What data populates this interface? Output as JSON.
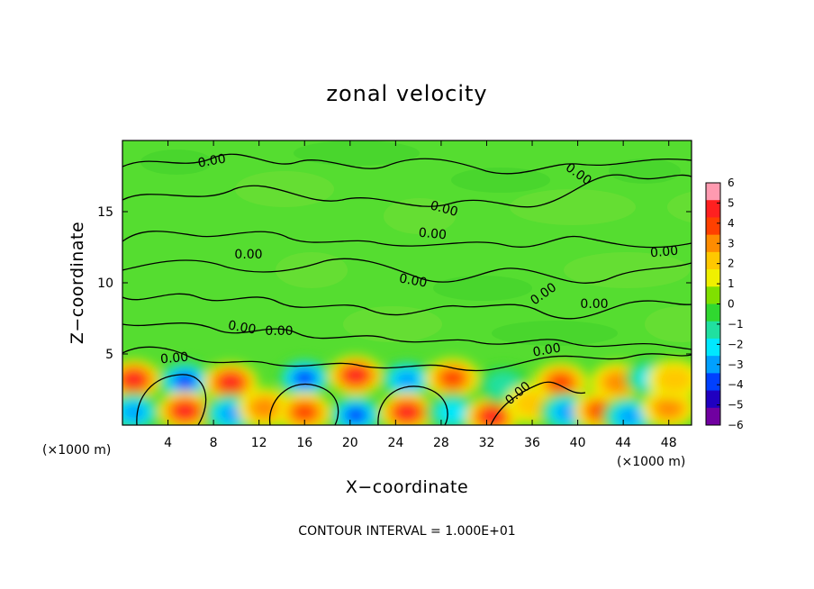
{
  "chart_data": {
    "type": "heatmap",
    "title": "zonal velocity",
    "xlabel": "X−coordinate",
    "ylabel": "Z−coordinate",
    "x_units": "(×1000 m)",
    "x_units_right": "(×1000 m)",
    "footer": "CONTOUR INTERVAL = 1.000E+01",
    "xlim": [
      0,
      50
    ],
    "ylim": [
      0,
      20
    ],
    "x_ticks": [
      4,
      8,
      12,
      16,
      20,
      24,
      28,
      32,
      36,
      40,
      44,
      48
    ],
    "y_ticks": [
      5,
      10,
      15
    ],
    "colorbar": {
      "ticks": [
        6,
        5,
        4,
        3,
        2,
        1,
        0,
        -1,
        -2,
        -3,
        -4,
        -5,
        -6
      ],
      "tick_labels": [
        "6",
        "5",
        "4",
        "3",
        "2",
        "1",
        "0",
        "−1",
        "−2",
        "−3",
        "−4",
        "−5",
        "−6"
      ],
      "colors": [
        "#ff9ab0",
        "#ff2020",
        "#ff4000",
        "#ff8c00",
        "#ffc800",
        "#f0f000",
        "#80e000",
        "#30d830",
        "#20e0a0",
        "#00e8ff",
        "#00a0ff",
        "#0040ff",
        "#2000c0",
        "#7000a0"
      ]
    },
    "contour_label": "0.00",
    "contour_labels_count": 14,
    "field": {
      "background": "#55dd30",
      "blobs": [
        {
          "x": 1,
          "z": 3.2,
          "v": 5
        },
        {
          "x": 1,
          "z": 0.9,
          "v": -4
        },
        {
          "x": 5.5,
          "z": 3.1,
          "v": -5
        },
        {
          "x": 5.5,
          "z": 1.0,
          "v": 5
        },
        {
          "x": 9.5,
          "z": 3.0,
          "v": 5
        },
        {
          "x": 9.5,
          "z": 0.8,
          "v": -4
        },
        {
          "x": 12.5,
          "z": 1.2,
          "v": 3
        },
        {
          "x": 16,
          "z": 3.3,
          "v": -5
        },
        {
          "x": 16,
          "z": 0.9,
          "v": 4
        },
        {
          "x": 20.5,
          "z": 3.5,
          "v": 5
        },
        {
          "x": 20.5,
          "z": 0.7,
          "v": -5
        },
        {
          "x": 25,
          "z": 3.2,
          "v": -4
        },
        {
          "x": 25,
          "z": 0.9,
          "v": 5
        },
        {
          "x": 29,
          "z": 3.3,
          "v": 4
        },
        {
          "x": 29,
          "z": 0.9,
          "v": -3
        },
        {
          "x": 32.5,
          "z": 0.6,
          "v": 5
        },
        {
          "x": 33.5,
          "z": 2.8,
          "v": -2
        },
        {
          "x": 36,
          "z": 1.5,
          "v": 2
        },
        {
          "x": 38.5,
          "z": 3.0,
          "v": 4
        },
        {
          "x": 39,
          "z": 0.9,
          "v": -4
        },
        {
          "x": 42,
          "z": 1.0,
          "v": 4
        },
        {
          "x": 43.5,
          "z": 3.0,
          "v": 3
        },
        {
          "x": 44.5,
          "z": 0.6,
          "v": -4
        },
        {
          "x": 46.5,
          "z": 3.3,
          "v": -3
        },
        {
          "x": 48,
          "z": 1.2,
          "v": 3
        },
        {
          "x": 48.5,
          "z": 3.2,
          "v": 2
        }
      ]
    }
  }
}
